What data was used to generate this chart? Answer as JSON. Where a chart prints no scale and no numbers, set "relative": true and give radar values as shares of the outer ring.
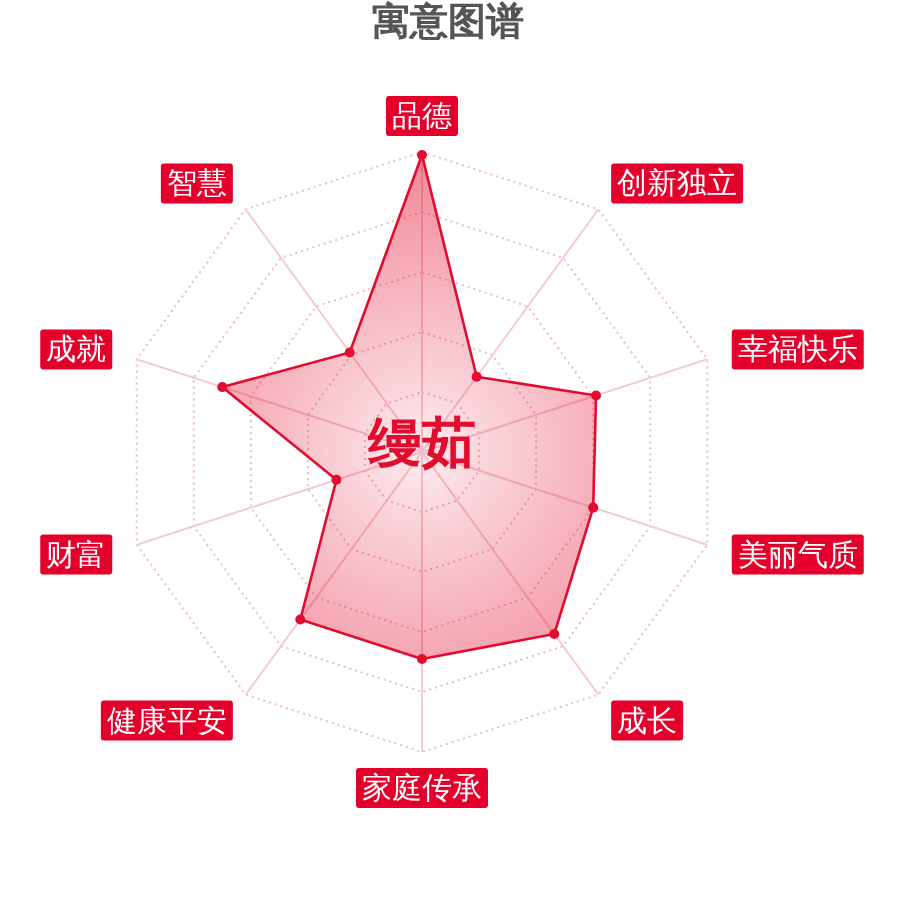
{
  "chart_data": {
    "type": "radar",
    "title": "寓意图谱",
    "annotations": [
      "缦茹"
    ],
    "categories": [
      "品德",
      "创新独立",
      "幸福快乐",
      "美丽气质",
      "成长",
      "家庭传承",
      "健康平安",
      "财富",
      "成就",
      "智慧"
    ],
    "relative": true,
    "grid": true,
    "marker": "circle",
    "series": [
      {
        "color": "#e40c2e",
        "values": [
          0.99,
          0.31,
          0.61,
          0.6,
          0.75,
          0.69,
          0.69,
          0.3,
          0.7,
          0.41
        ]
      }
    ]
  }
}
